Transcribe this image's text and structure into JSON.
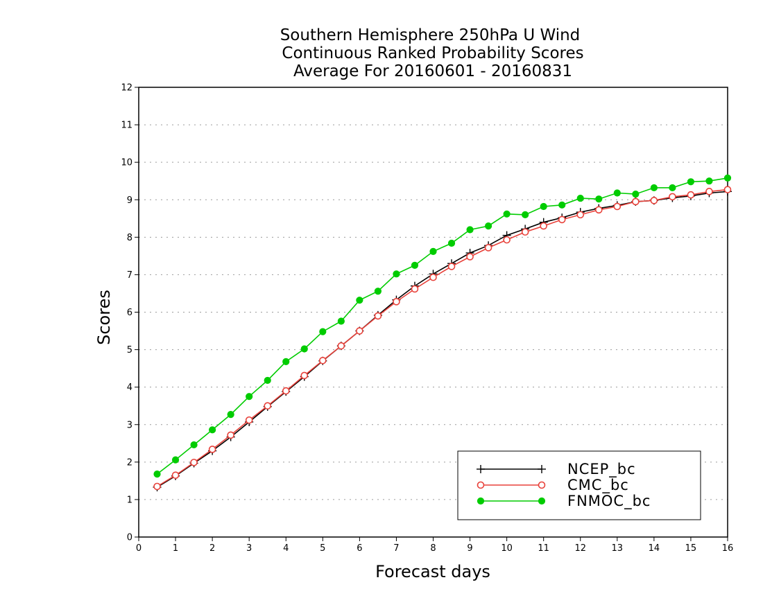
{
  "chart_data": {
    "type": "line",
    "title": [
      "Southern Hemisphere 250hPa U Wind",
      "Continuous Ranked Probability Scores",
      "Average For 20160601 - 20160831"
    ],
    "xlabel": "Forecast days",
    "ylabel": "Scores",
    "xlim": [
      0,
      16
    ],
    "ylim": [
      0,
      12
    ],
    "xticks": [
      0,
      1,
      2,
      3,
      4,
      5,
      6,
      7,
      8,
      9,
      10,
      11,
      12,
      13,
      14,
      15,
      16
    ],
    "yticks": [
      0,
      1,
      2,
      3,
      4,
      5,
      6,
      7,
      8,
      9,
      10,
      11,
      12
    ],
    "grid": "horizontal dotted",
    "legend_position": "bottom-right",
    "x": [
      0.5,
      1,
      1.5,
      2,
      2.5,
      3,
      3.5,
      4,
      4.5,
      5,
      5.5,
      6,
      6.5,
      7,
      7.5,
      8,
      8.5,
      9,
      9.5,
      10,
      10.5,
      11,
      11.5,
      12,
      12.5,
      13,
      13.5,
      14,
      14.5,
      15,
      15.5,
      16
    ],
    "series": [
      {
        "name": "NCEP_bc",
        "color": "#000000",
        "marker": "plus",
        "values": [
          1.33,
          1.63,
          1.97,
          2.3,
          2.67,
          3.07,
          3.48,
          3.88,
          4.28,
          4.7,
          5.1,
          5.5,
          5.92,
          6.33,
          6.7,
          7.02,
          7.3,
          7.58,
          7.78,
          8.05,
          8.22,
          8.4,
          8.52,
          8.67,
          8.77,
          8.85,
          8.95,
          8.98,
          9.05,
          9.1,
          9.18,
          9.22
        ]
      },
      {
        "name": "CMC_bc",
        "color": "#e8413a",
        "marker": "open-circle",
        "values": [
          1.35,
          1.65,
          1.99,
          2.34,
          2.72,
          3.12,
          3.5,
          3.9,
          4.31,
          4.71,
          5.1,
          5.5,
          5.9,
          6.28,
          6.62,
          6.93,
          7.22,
          7.48,
          7.72,
          7.93,
          8.14,
          8.3,
          8.47,
          8.6,
          8.73,
          8.82,
          8.95,
          8.98,
          9.08,
          9.13,
          9.22,
          9.27
        ]
      },
      {
        "name": "FNMOC_bc",
        "color": "#00cc00",
        "marker": "filled-circle",
        "values": [
          1.68,
          2.06,
          2.46,
          2.86,
          3.27,
          3.75,
          4.18,
          4.68,
          5.02,
          5.48,
          5.76,
          6.32,
          6.56,
          7.02,
          7.25,
          7.62,
          7.84,
          8.2,
          8.3,
          8.62,
          8.6,
          8.82,
          8.86,
          9.04,
          9.02,
          9.18,
          9.15,
          9.32,
          9.32,
          9.48,
          9.5,
          9.58
        ]
      }
    ]
  }
}
